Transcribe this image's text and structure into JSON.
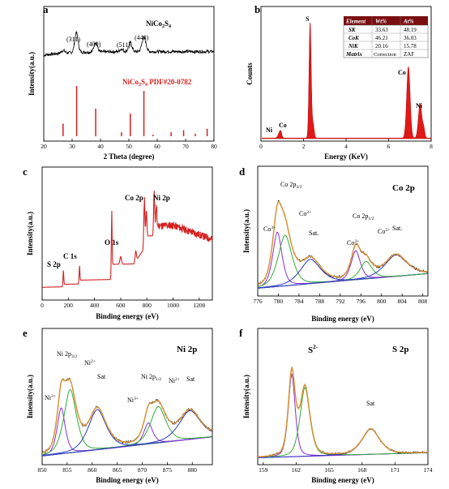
{
  "panels": {
    "a": {
      "letter": "a",
      "compound": "NiCo",
      "compound_sub1": "2",
      "compound_mid": "S",
      "compound_sub2": "4",
      "ref_label": "NiCo",
      "ref_sub1": "2",
      "ref_mid": "S",
      "ref_sub2": "4",
      "ref_tail": " PDF#20-0782",
      "peaks": [
        "(311)",
        "(400)",
        "(511)",
        "(440)"
      ]
    },
    "b": {
      "letter": "b",
      "peak_labels": [
        "S",
        "Co",
        "Ni",
        "Co",
        "Ni"
      ]
    },
    "c": {
      "letter": "c",
      "peak_labels": [
        "Co 2p",
        "Ni 2p",
        "O 1s",
        "C 1s",
        "S 2p"
      ]
    },
    "d": {
      "letter": "d",
      "title": "Co 2p",
      "labels": {
        "co2p32": "Co 2p",
        "co2p32_sub": "3/2",
        "co2p12": "Co 2p",
        "co2p12_sub": "1/2",
        "co3a": "Co",
        "co3a_sup": "3+",
        "co2a": "Co",
        "co2a_sup": "2+",
        "sat1": "Sat.",
        "co3b": "Co",
        "co3b_sup": "3+",
        "co2b": "Co",
        "co2b_sup": "2+",
        "sat2": "Sat."
      }
    },
    "e": {
      "letter": "e",
      "title": "Ni 2p",
      "labels": {
        "ni2p32": "Ni 2p",
        "ni2p32_sub": "3/2",
        "ni2p12": "Ni 2p",
        "ni2p12_sub": "1/2",
        "ni3a": "Ni",
        "ni3a_sup": "3+",
        "ni2a": "Ni",
        "ni2a_sup": "2+",
        "sat1": "Sat",
        "ni3b": "Ni",
        "ni3b_sup": "3+",
        "ni2b": "Ni",
        "ni2b_sup": "2+",
        "sat2": "Sat"
      }
    },
    "f": {
      "letter": "f",
      "title": "S 2p",
      "labels": {
        "s2": "S",
        "s2_sup": "2-",
        "sat": "Sat"
      }
    }
  },
  "eds_table": {
    "headers": [
      "Element",
      "Wt%",
      "At%"
    ],
    "rows": [
      [
        "SK",
        "33.63",
        "48.19"
      ],
      [
        "CoK",
        "46.21",
        "36.03"
      ],
      [
        "NiK",
        "20.16",
        "15.78"
      ],
      [
        "Matrix",
        "Correction",
        "ZAF"
      ]
    ]
  },
  "colors": {
    "xrd_ref": "#d42020",
    "eds_fill": "#e01818",
    "survey": "#d42020",
    "fit_envelope": "#e39a3a",
    "green": "#2fae38",
    "purple": "#8b2fd6",
    "blue": "#2e3ac8",
    "raw": "#000000"
  },
  "chart_data": [
    {
      "panel": "a",
      "type": "line",
      "title": "",
      "xlabel": "2 Theta (degree)",
      "ylabel": "Intensity(a.u.)",
      "xlim": [
        20,
        80
      ],
      "xticks": [
        "20",
        "30",
        "40",
        "50",
        "60",
        "70",
        "80"
      ],
      "series": [
        {
          "name": "NiCo2S4",
          "x": [
            20,
            26,
            28,
            30,
            31.5,
            33,
            36,
            38.3,
            40,
            45,
            50,
            51,
            52,
            55,
            57,
            60,
            65,
            70,
            75,
            80
          ],
          "y": [
            0.62,
            0.64,
            0.66,
            0.72,
            0.92,
            0.72,
            0.68,
            0.78,
            0.68,
            0.68,
            0.7,
            0.8,
            0.7,
            0.86,
            0.72,
            0.66,
            0.65,
            0.64,
            0.64,
            0.64
          ]
        },
        {
          "name": "NiCo2S4 PDF#20-0782",
          "type": "stick",
          "x": [
            26.8,
            31.6,
            38.3,
            47.4,
            50.5,
            55.3,
            58.5,
            64.9,
            69.3,
            73.4,
            77.6
          ],
          "y": [
            0.25,
            1.0,
            0.55,
            0.08,
            0.45,
            0.9,
            0.03,
            0.08,
            0.12,
            0.05,
            0.15
          ]
        }
      ]
    },
    {
      "panel": "b",
      "type": "area",
      "title": "",
      "xlabel": "Energy (KeV)",
      "ylabel": "Counts",
      "xlim": [
        0,
        8
      ],
      "xticks": [
        "0",
        "2",
        "4",
        "6",
        "8"
      ],
      "peaks": [
        {
          "label": "Ni",
          "x": 0.85,
          "y": 0.03
        },
        {
          "label": "Co",
          "x": 0.93,
          "y": 0.06
        },
        {
          "label": "S",
          "x": 2.31,
          "y": 1.0
        },
        {
          "label": "Co",
          "x": 6.93,
          "y": 0.6
        },
        {
          "label": "Ni",
          "x": 7.48,
          "y": 0.3
        }
      ]
    },
    {
      "panel": "c",
      "type": "line",
      "title": "",
      "xlabel": "Binding energy (eV)",
      "ylabel": "Intensity(a.u.)",
      "xlim": [
        0,
        1300
      ],
      "xticks": [
        "0",
        "200",
        "400",
        "600",
        "800",
        "1000",
        "1200"
      ],
      "peaks": [
        {
          "label": "S 2p",
          "x": 162,
          "y": 0.22
        },
        {
          "label": "C 1s",
          "x": 285,
          "y": 0.22
        },
        {
          "label": "O 1s",
          "x": 531,
          "y": 0.72
        },
        {
          "label": "Co 2p",
          "x": 780,
          "y": 0.93
        },
        {
          "label": "Ni 2p",
          "x": 855,
          "y": 0.94
        }
      ]
    },
    {
      "panel": "d",
      "type": "line",
      "title": "Co 2p",
      "xlabel": "Binding energy (eV)",
      "ylabel": "Intensity(a.u.)",
      "xlim": [
        776,
        809
      ],
      "xticks": [
        "776",
        "780",
        "784",
        "788",
        "792",
        "796",
        "800",
        "804",
        "808"
      ],
      "components": [
        {
          "label": "Co3+",
          "center": 779.8
        },
        {
          "label": "Co2+",
          "center": 781.3
        },
        {
          "label": "Sat.",
          "center": 786.2
        },
        {
          "label": "Co3+",
          "center": 795.0
        },
        {
          "label": "Co2+",
          "center": 797.0
        },
        {
          "label": "Sat.",
          "center": 802.8
        }
      ]
    },
    {
      "panel": "e",
      "type": "line",
      "title": "Ni 2p",
      "xlabel": "Binding energy (eV)",
      "ylabel": "Intensity(a.u.)",
      "xlim": [
        850,
        884
      ],
      "xticks": [
        "850",
        "855",
        "860",
        "865",
        "870",
        "875",
        "880"
      ],
      "components": [
        {
          "label": "Ni3+",
          "center": 853.8
        },
        {
          "label": "Ni2+",
          "center": 855.6
        },
        {
          "label": "Sat",
          "center": 861.0
        },
        {
          "label": "Ni3+",
          "center": 871.2
        },
        {
          "label": "Ni2+",
          "center": 873.2
        },
        {
          "label": "Sat",
          "center": 879.5
        }
      ]
    },
    {
      "panel": "f",
      "type": "line",
      "title": "S 2p",
      "xlabel": "Binding energy (eV)",
      "ylabel": "Intensity(a.u.)",
      "xlim": [
        158.5,
        174
      ],
      "xticks": [
        "159",
        "162",
        "165",
        "168",
        "171",
        "174"
      ],
      "components": [
        {
          "label": "S2-",
          "center": 161.6
        },
        {
          "label": "S2-",
          "center": 162.8
        },
        {
          "label": "Sat",
          "center": 168.8
        }
      ]
    }
  ]
}
